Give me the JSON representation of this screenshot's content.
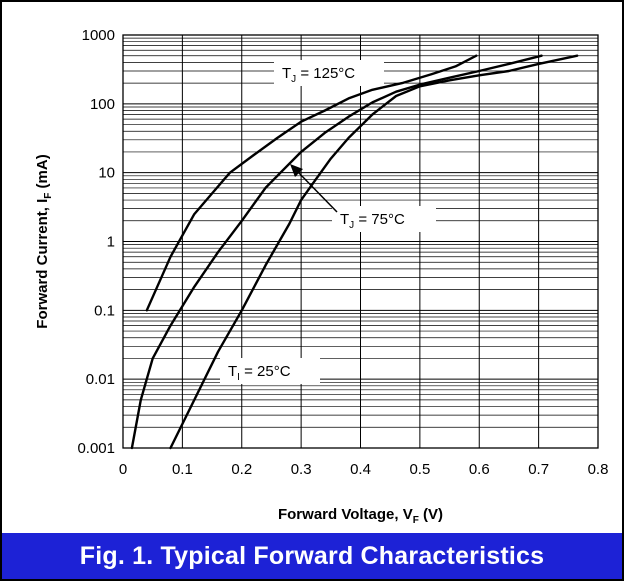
{
  "caption": "Fig. 1.  Typical Forward Characteristics",
  "chart_data": {
    "type": "line",
    "xlabel": "Forward Voltage, V",
    "xlabel_sub": "F",
    "xlabel_unit": " (V)",
    "ylabel": "Forward Current, I",
    "ylabel_sub": "F",
    "ylabel_unit": " (mA)",
    "xlim": [
      0,
      0.8
    ],
    "ylim": [
      0.001,
      1000
    ],
    "yscale": "log",
    "grid": true,
    "xticks": [
      "0",
      "0.1",
      "0.2",
      "0.3",
      "0.4",
      "0.5",
      "0.6",
      "0.7",
      "0.8"
    ],
    "yticks": [
      "0.001",
      "0.01",
      "0.1",
      "1",
      "10",
      "100",
      "1000"
    ],
    "series": [
      {
        "name": "TJ = 125°C",
        "x": [
          0.04,
          0.08,
          0.12,
          0.15,
          0.18,
          0.22,
          0.26,
          0.3,
          0.34,
          0.38,
          0.42,
          0.47,
          0.52,
          0.56,
          0.595
        ],
        "y": [
          0.1,
          0.6,
          2.5,
          5,
          10,
          18,
          32,
          55,
          80,
          120,
          160,
          200,
          270,
          350,
          500
        ]
      },
      {
        "name": "TJ = 75°C",
        "x": [
          0.015,
          0.03,
          0.05,
          0.08,
          0.12,
          0.16,
          0.2,
          0.24,
          0.27,
          0.3,
          0.34,
          0.38,
          0.42,
          0.46,
          0.5,
          0.55,
          0.6,
          0.65,
          0.705
        ],
        "y": [
          0.001,
          0.005,
          0.02,
          0.06,
          0.22,
          0.7,
          2.0,
          6.0,
          11,
          20,
          38,
          65,
          105,
          150,
          190,
          240,
          300,
          380,
          500
        ]
      },
      {
        "name": "TI = 25°C",
        "x": [
          0.08,
          0.12,
          0.16,
          0.2,
          0.24,
          0.28,
          0.3,
          0.32,
          0.35,
          0.38,
          0.42,
          0.46,
          0.5,
          0.55,
          0.6,
          0.65,
          0.7,
          0.765
        ],
        "y": [
          0.001,
          0.005,
          0.025,
          0.1,
          0.45,
          1.8,
          4,
          7,
          16,
          32,
          70,
          130,
          180,
          220,
          260,
          300,
          380,
          500
        ]
      }
    ],
    "annotations": [
      {
        "main": "T",
        "sub": "J",
        "rest": " = 125°C"
      },
      {
        "main": "T",
        "sub": "J",
        "rest": " = 75°C"
      },
      {
        "main": "T",
        "sub": "I",
        "rest": " = 25°C"
      }
    ]
  }
}
